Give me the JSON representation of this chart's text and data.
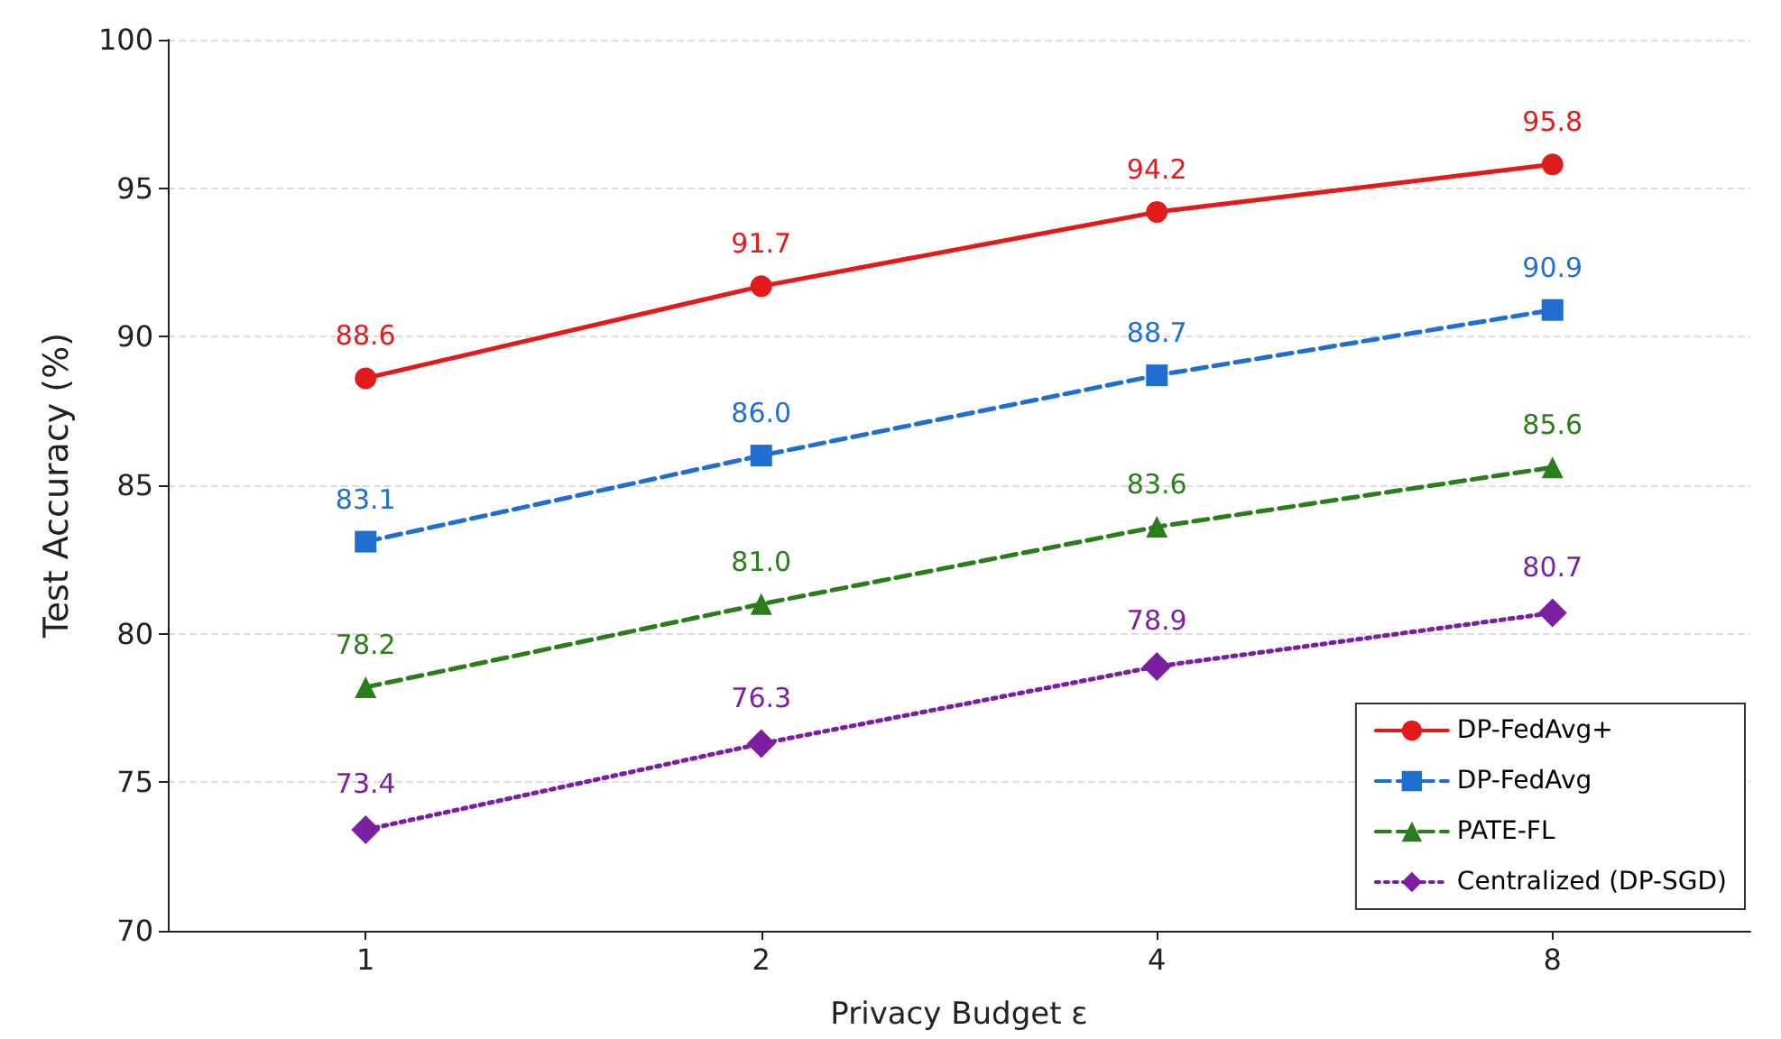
{
  "chart_data": {
    "type": "line",
    "xlabel": "Privacy Budget ε",
    "ylabel": "Test Accuracy (%)",
    "categories": [
      "1",
      "2",
      "4",
      "8"
    ],
    "series": [
      {
        "name": "DP-FedAvg+",
        "color": "#e31a1c",
        "values": [
          88.6,
          91.7,
          94.2,
          95.8
        ],
        "value_labels": [
          "88.6",
          "91.7",
          "94.2",
          "95.8"
        ],
        "marker": "circle",
        "line_style": "solid"
      },
      {
        "name": "DP-FedAvg",
        "color": "#1f6fd1",
        "values": [
          83.1,
          86.0,
          88.7,
          90.9
        ],
        "value_labels": [
          "83.1",
          "86.0",
          "88.7",
          "90.9"
        ],
        "marker": "square",
        "line_style": "dashed"
      },
      {
        "name": "PATE-FL",
        "color": "#2a7d1a",
        "values": [
          78.2,
          81.0,
          83.6,
          85.6
        ],
        "value_labels": [
          "78.2",
          "81.0",
          "83.6",
          "85.6"
        ],
        "marker": "triangle",
        "line_style": "dashed"
      },
      {
        "name": "Centralized (DP-SGD)",
        "color": "#7b1fa2",
        "values": [
          73.4,
          76.3,
          78.9,
          80.7
        ],
        "value_labels": [
          "73.4",
          "76.3",
          "78.9",
          "80.7"
        ],
        "marker": "diamond",
        "line_style": "dotted"
      }
    ],
    "ylim": [
      70,
      100
    ],
    "yticks": [
      70,
      75,
      80,
      85,
      90,
      95,
      100
    ],
    "grid": "y",
    "legend": "bottom right"
  }
}
